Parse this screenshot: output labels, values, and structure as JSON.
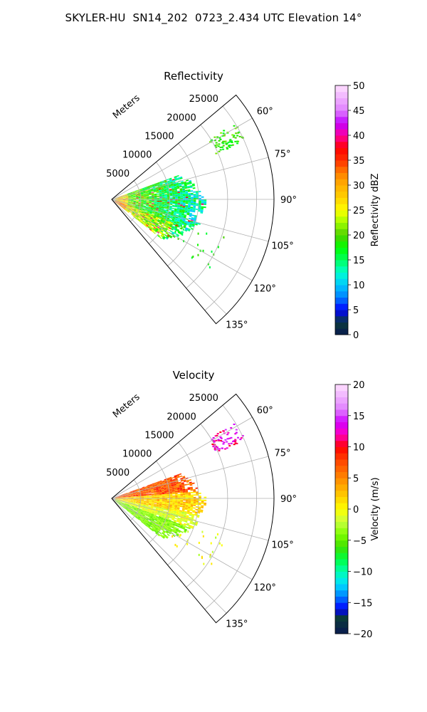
{
  "figure": {
    "title": "SKYLER-HU  SN14_202  0723_2.434 UTC Elevation 14°"
  },
  "chart_data": [
    {
      "type": "heatmap",
      "subtype": "polar-sector",
      "title": "Reflectivity",
      "radial_label": "Meters",
      "radial_ticks": [
        "5000",
        "10000",
        "15000",
        "20000",
        "25000"
      ],
      "radial_values": [
        5000,
        10000,
        15000,
        20000,
        25000
      ],
      "rmax": 28000,
      "theta_range_deg": [
        50,
        140
      ],
      "theta_ticks": [
        "60°",
        "75°",
        "90°",
        "105°",
        "120°",
        "135°"
      ],
      "theta_values": [
        60,
        75,
        90,
        105,
        120,
        135
      ],
      "grid": true,
      "colorbar": {
        "label": "Reflectivity dBZ",
        "min": 0,
        "max": 50,
        "ticks": [
          "0",
          "5",
          "10",
          "15",
          "20",
          "25",
          "30",
          "35",
          "40",
          "45",
          "50"
        ],
        "tick_values": [
          0,
          5,
          10,
          15,
          20,
          25,
          30,
          35,
          40,
          45,
          50
        ],
        "stops": [
          [
            0,
            "#0a1a50"
          ],
          [
            2.5,
            "#0b3a3a"
          ],
          [
            5,
            "#0000ff"
          ],
          [
            7.5,
            "#0080ff"
          ],
          [
            10,
            "#00c8ff"
          ],
          [
            12.5,
            "#00ffd0"
          ],
          [
            15,
            "#00ff60"
          ],
          [
            17.5,
            "#00ff00"
          ],
          [
            20,
            "#50d000"
          ],
          [
            22.5,
            "#a0ff00"
          ],
          [
            25,
            "#ffff00"
          ],
          [
            27.5,
            "#ffd000"
          ],
          [
            30,
            "#ffb000"
          ],
          [
            32.5,
            "#ff8000"
          ],
          [
            35,
            "#ff3000"
          ],
          [
            37.5,
            "#ff0000"
          ],
          [
            40,
            "#ff00a0"
          ],
          [
            42.5,
            "#c000ff"
          ],
          [
            45,
            "#e080ff"
          ],
          [
            50,
            "#ffe0ff"
          ]
        ]
      }
    },
    {
      "type": "heatmap",
      "subtype": "polar-sector",
      "title": "Velocity",
      "radial_label": "Meters",
      "radial_ticks": [
        "5000",
        "10000",
        "15000",
        "20000",
        "25000"
      ],
      "radial_values": [
        5000,
        10000,
        15000,
        20000,
        25000
      ],
      "rmax": 28000,
      "theta_range_deg": [
        50,
        140
      ],
      "theta_ticks": [
        "60°",
        "75°",
        "90°",
        "105°",
        "120°",
        "135°"
      ],
      "theta_values": [
        60,
        75,
        90,
        105,
        120,
        135
      ],
      "grid": true,
      "colorbar": {
        "label": "Velocity (m/s)",
        "min": -20,
        "max": 20,
        "ticks": [
          "−20",
          "−15",
          "−10",
          "−5",
          "0",
          "5",
          "10",
          "15",
          "20"
        ],
        "tick_values": [
          -20,
          -15,
          -10,
          -5,
          0,
          5,
          10,
          15,
          20
        ],
        "stops": [
          [
            -20,
            "#0a1a50"
          ],
          [
            -17.5,
            "#0b3a3a"
          ],
          [
            -16,
            "#0000ff"
          ],
          [
            -14,
            "#0080ff"
          ],
          [
            -12,
            "#00e0ff"
          ],
          [
            -10,
            "#00ffb0"
          ],
          [
            -8,
            "#00ff40"
          ],
          [
            -6,
            "#40e000"
          ],
          [
            -4,
            "#80ff00"
          ],
          [
            -2,
            "#c8ff40"
          ],
          [
            0,
            "#ffff00"
          ],
          [
            2,
            "#ffd000"
          ],
          [
            4,
            "#ffa000"
          ],
          [
            6,
            "#ff7000"
          ],
          [
            8,
            "#ff4000"
          ],
          [
            10,
            "#ff0000"
          ],
          [
            12,
            "#ff00c0"
          ],
          [
            14,
            "#d000ff"
          ],
          [
            16,
            "#e080ff"
          ],
          [
            20,
            "#ffe0ff"
          ]
        ]
      }
    }
  ]
}
